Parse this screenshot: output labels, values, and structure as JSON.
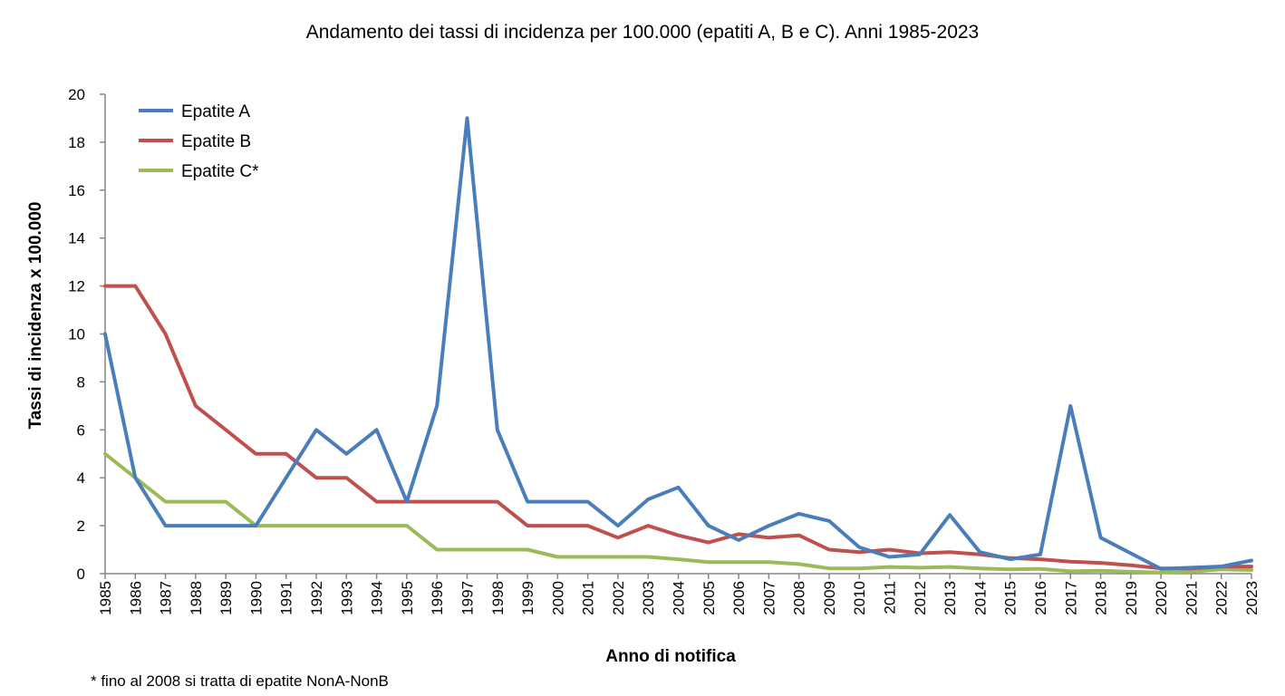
{
  "chart_data": {
    "type": "line",
    "title": "Andamento dei tassi di incidenza per 100.000 (epatiti A, B e C). Anni 1985-2023",
    "xlabel": "Anno di notifica",
    "ylabel": "Tassi di incidenza x 100.000",
    "footnote": "* fino al 2008 si tratta di epatite NonA-NonB",
    "ylim": [
      0,
      20
    ],
    "yticks": [
      "0",
      "2",
      "4",
      "6",
      "8",
      "10",
      "12",
      "14",
      "16",
      "18",
      "20"
    ],
    "grid": false,
    "legend_position": "top-left",
    "categories": [
      "1985",
      "1986",
      "1987",
      "1988",
      "1989",
      "1990",
      "1991",
      "1992",
      "1993",
      "1994",
      "1995",
      "1996",
      "1997",
      "1998",
      "1999",
      "2000",
      "2001",
      "2002",
      "2003",
      "2004",
      "2005",
      "2006",
      "2007",
      "2008",
      "2009",
      "2010",
      "2011",
      "2012",
      "2013",
      "2014",
      "2015",
      "2016",
      "2017",
      "2018",
      "2019",
      "2020",
      "2021",
      "2022",
      "2023"
    ],
    "series": [
      {
        "name": "Epatite A",
        "color": "#4a7ebb",
        "values": [
          10,
          4,
          2,
          2,
          2,
          2,
          4,
          6,
          5,
          6,
          3,
          7,
          19,
          6,
          3,
          3,
          3,
          2,
          3.1,
          3.6,
          2,
          1.4,
          2,
          2.5,
          2.2,
          1.1,
          0.7,
          0.8,
          2.45,
          0.9,
          0.6,
          0.8,
          7,
          1.5,
          0.85,
          0.2,
          0.25,
          0.3,
          0.55
        ]
      },
      {
        "name": "Epatite B",
        "color": "#c0504d",
        "values": [
          12,
          12,
          10,
          7,
          6,
          5,
          5,
          4,
          4,
          3,
          3,
          3,
          3,
          3,
          2,
          2,
          2,
          1.5,
          2,
          1.6,
          1.3,
          1.65,
          1.5,
          1.6,
          1,
          0.9,
          1,
          0.85,
          0.9,
          0.8,
          0.65,
          0.6,
          0.5,
          0.45,
          0.35,
          0.22,
          0.22,
          0.3,
          0.3
        ]
      },
      {
        "name": "Epatite C*",
        "color": "#9bbb59",
        "values": [
          5,
          4,
          3,
          3,
          3,
          2,
          2,
          2,
          2,
          2,
          2,
          1,
          1,
          1,
          1,
          0.7,
          0.7,
          0.7,
          0.7,
          0.6,
          0.48,
          0.48,
          0.48,
          0.4,
          0.22,
          0.22,
          0.28,
          0.25,
          0.28,
          0.22,
          0.18,
          0.2,
          0.1,
          0.12,
          0.08,
          0.05,
          0.08,
          0.18,
          0.15
        ]
      }
    ]
  }
}
